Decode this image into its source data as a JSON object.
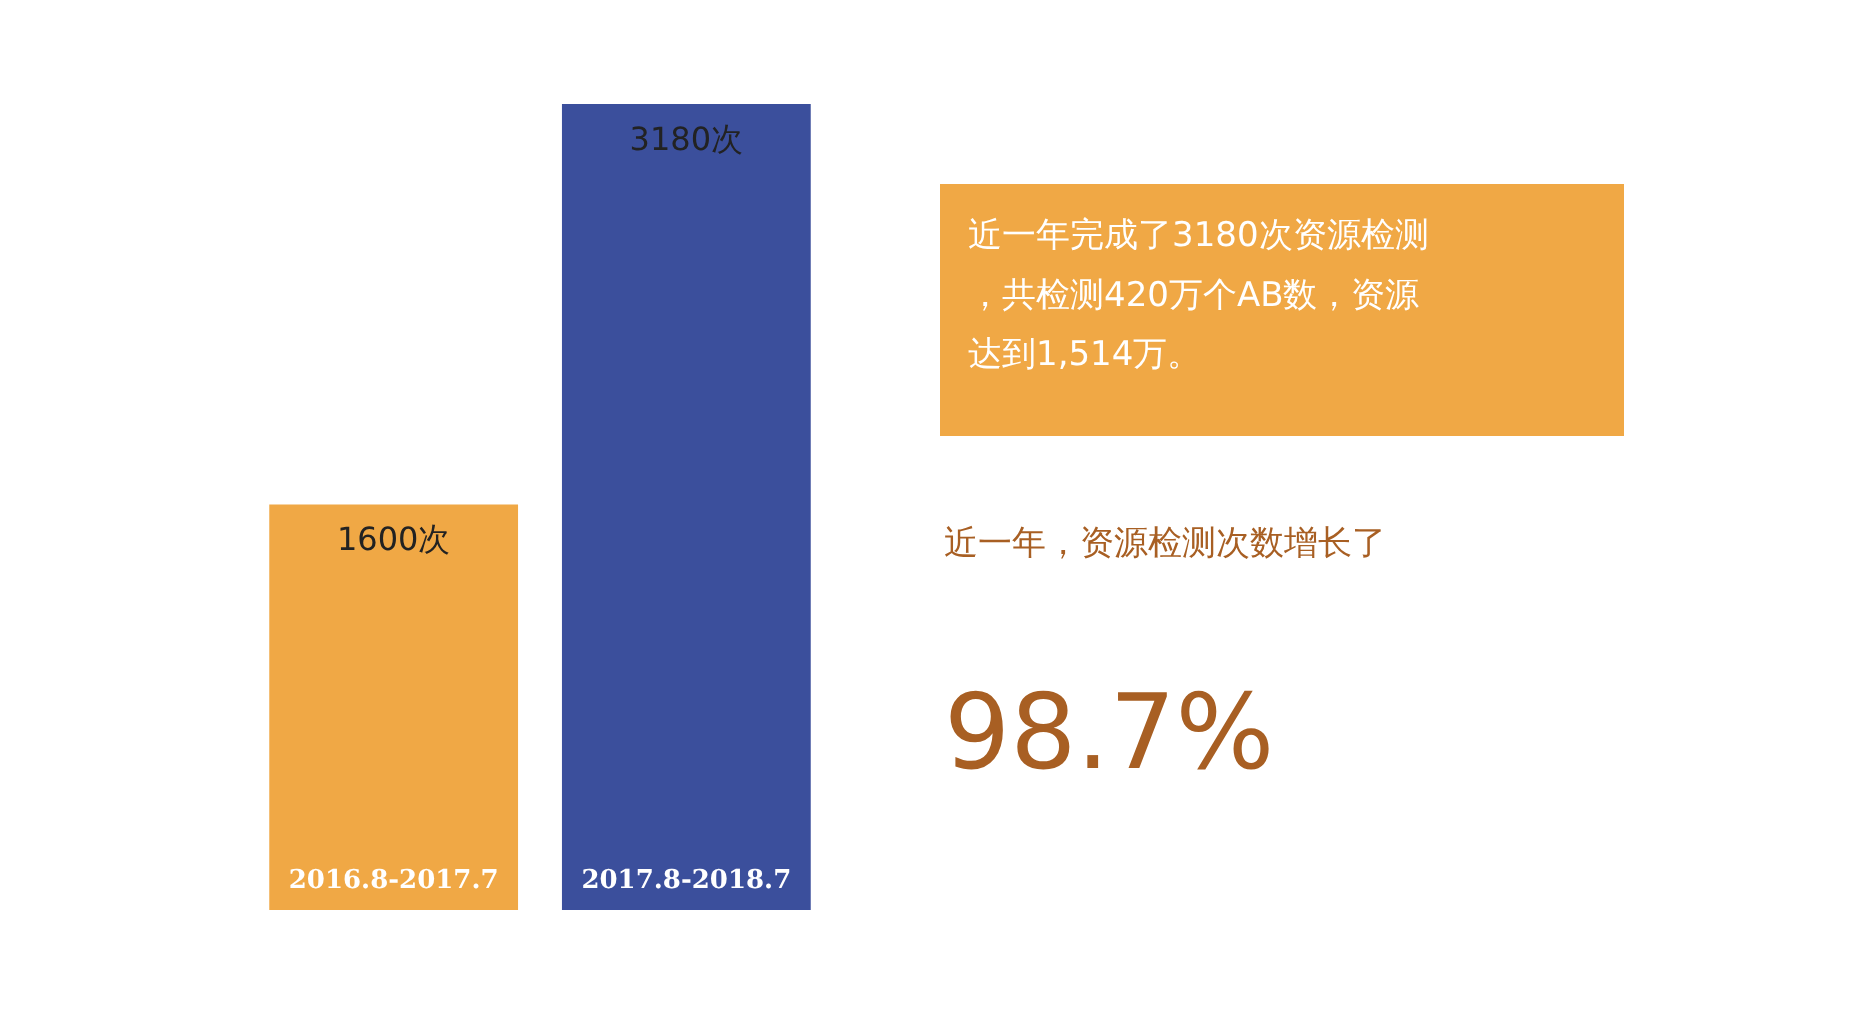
{
  "chart_data": {
    "type": "bar",
    "categories": [
      "2016.8-2017.7",
      "2017.8-2018.7"
    ],
    "values": [
      1600,
      3180
    ],
    "value_labels": [
      "1600次",
      "3180次"
    ],
    "colors": [
      "#f0a845",
      "#3b4f9c"
    ],
    "annotations": [
      "近一年完成了3180次资源检测，共检测420万个AB数，资源达到1,514万。",
      "近一年，资源检测次数增长了",
      "98.7%"
    ]
  }
}
